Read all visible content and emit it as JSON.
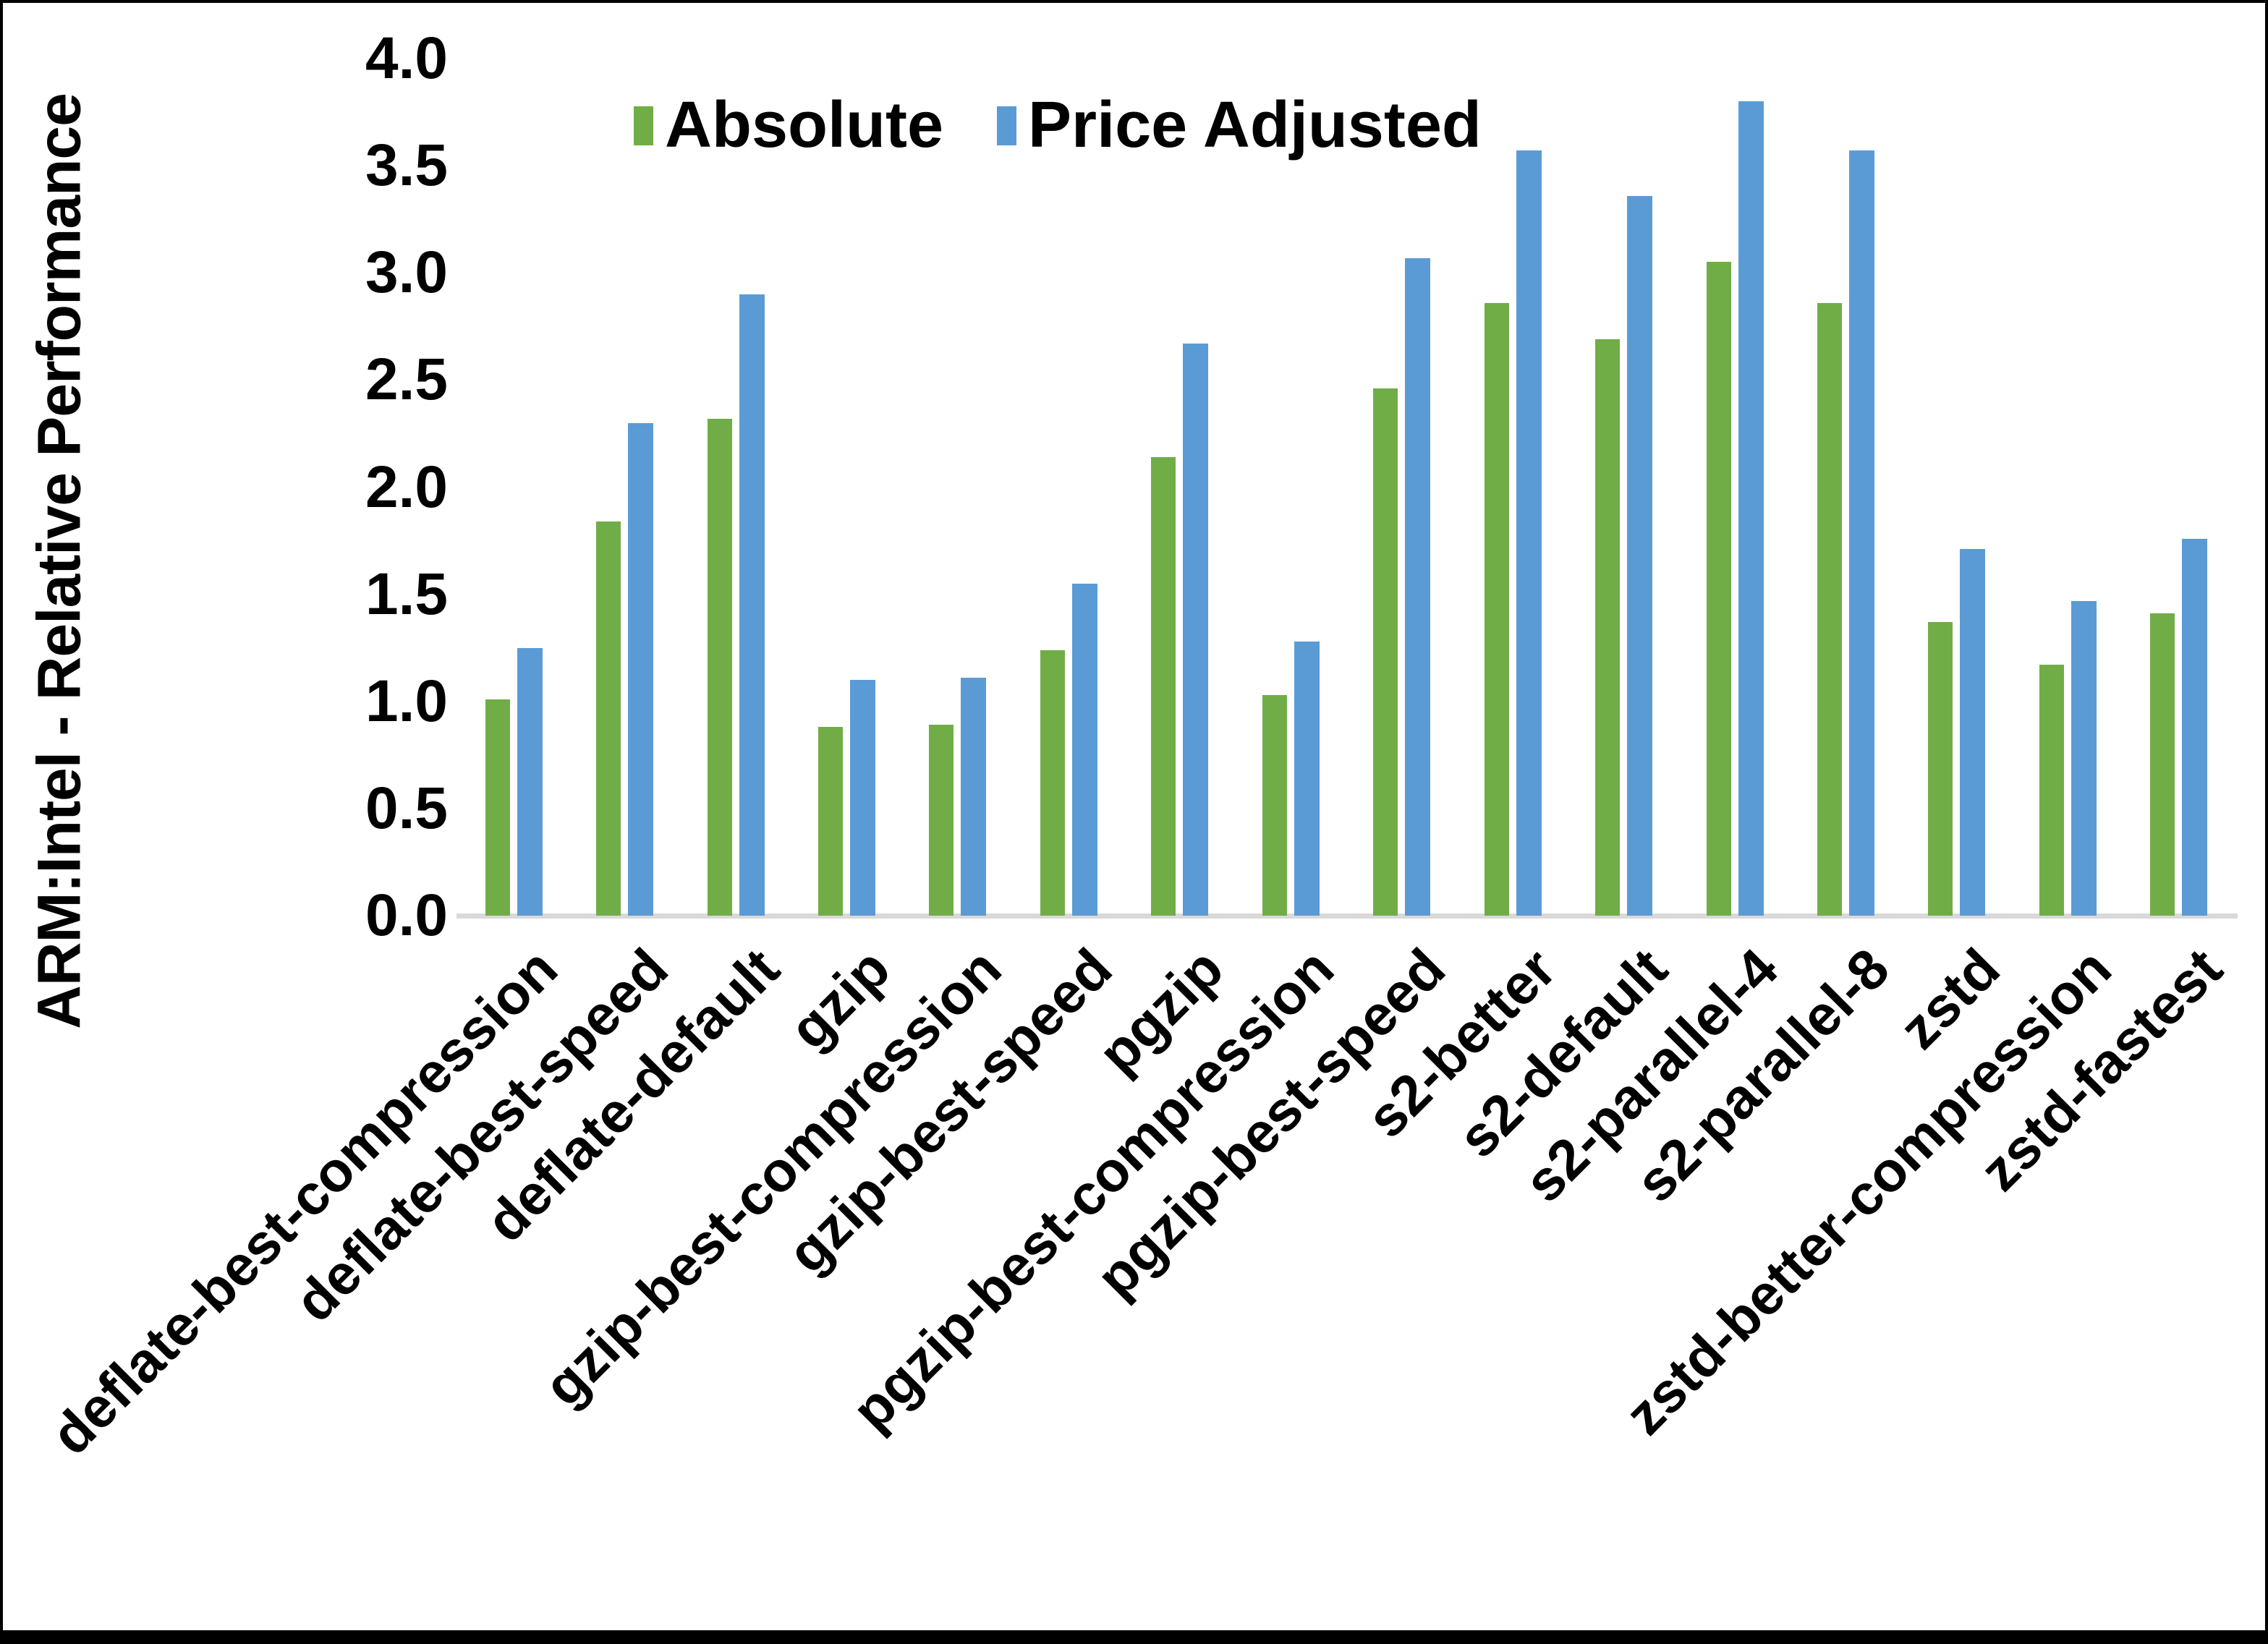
{
  "chart_data": {
    "type": "bar",
    "title": "",
    "xlabel": "",
    "ylabel": "ARM:Intel - Relative Performance",
    "ylim": [
      0.0,
      4.0
    ],
    "ytick_step": 0.5,
    "ytick_labels": [
      "0.0",
      "0.5",
      "1.0",
      "1.5",
      "2.0",
      "2.5",
      "3.0",
      "3.5",
      "4.0"
    ],
    "grid": false,
    "legend_position": "top-center",
    "axis_line_color": "#d9d9d9",
    "text_color": "#000000",
    "categories": [
      "deflate-best-compression",
      "deflate-best-speed",
      "deflate-default",
      "gzip",
      "gzip-best-compression",
      "gzip-best-speed",
      "pgzip",
      "pgzip-best-compression",
      "pgzip-best-speed",
      "s2-better",
      "s2-default",
      "s2-parallel-4",
      "s2-parallel-8",
      "zstd",
      "zstd-better-compression",
      "zstd-fastest"
    ],
    "series": [
      {
        "name": "Absolute",
        "color": "#70AD47",
        "values": [
          1.01,
          1.84,
          2.32,
          0.88,
          0.89,
          1.24,
          2.14,
          1.03,
          2.46,
          2.86,
          2.69,
          3.05,
          2.86,
          1.37,
          1.17,
          1.41
        ]
      },
      {
        "name": "Price Adjusted",
        "color": "#5B9BD5",
        "values": [
          1.25,
          2.3,
          2.9,
          1.1,
          1.11,
          1.55,
          2.67,
          1.28,
          3.07,
          3.57,
          3.36,
          3.8,
          3.57,
          1.71,
          1.47,
          1.76
        ]
      }
    ]
  }
}
